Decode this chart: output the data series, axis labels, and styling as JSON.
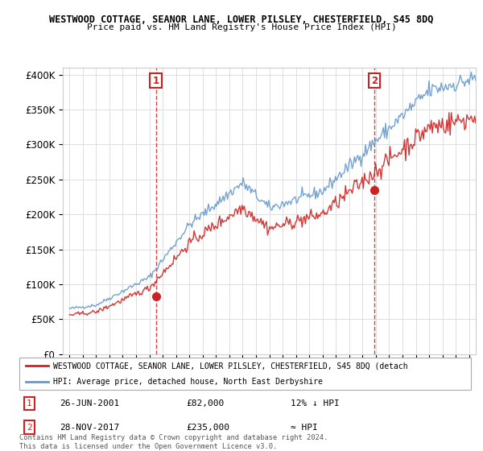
{
  "title1": "WESTWOOD COTTAGE, SEANOR LANE, LOWER PILSLEY, CHESTERFIELD, S45 8DQ",
  "title2": "Price paid vs. HM Land Registry's House Price Index (HPI)",
  "legend_label1": "WESTWOOD COTTAGE, SEANOR LANE, LOWER PILSLEY, CHESTERFIELD, S45 8DQ (detach",
  "legend_label2": "HPI: Average price, detached house, North East Derbyshire",
  "annotation1": {
    "label": "1",
    "date_str": "26-JUN-2001",
    "price_str": "£82,000",
    "hpi_str": "12% ↓ HPI",
    "x_year": 2001.48,
    "y": 82000
  },
  "annotation2": {
    "label": "2",
    "date_str": "28-NOV-2017",
    "price_str": "£235,000",
    "hpi_str": "≈ HPI",
    "x_year": 2017.9,
    "y": 235000
  },
  "dashed_line1_x": 2001.48,
  "dashed_line2_x": 2017.9,
  "footer": "Contains HM Land Registry data © Crown copyright and database right 2024.\nThis data is licensed under the Open Government Licence v3.0.",
  "ylim": [
    0,
    410000
  ],
  "xlim_start": 1994.5,
  "xlim_end": 2025.5,
  "yticks": [
    0,
    50000,
    100000,
    150000,
    200000,
    250000,
    300000,
    350000,
    400000
  ],
  "ytick_labels": [
    "£0",
    "£50K",
    "£100K",
    "£150K",
    "£200K",
    "£250K",
    "£300K",
    "£350K",
    "£400K"
  ],
  "background_color": "#ffffff",
  "grid_color": "#dddddd",
  "hpi_color": "#6699cc",
  "price_color": "#cc2222",
  "dashed_color": "#cc2222",
  "hpi_seed": 42
}
